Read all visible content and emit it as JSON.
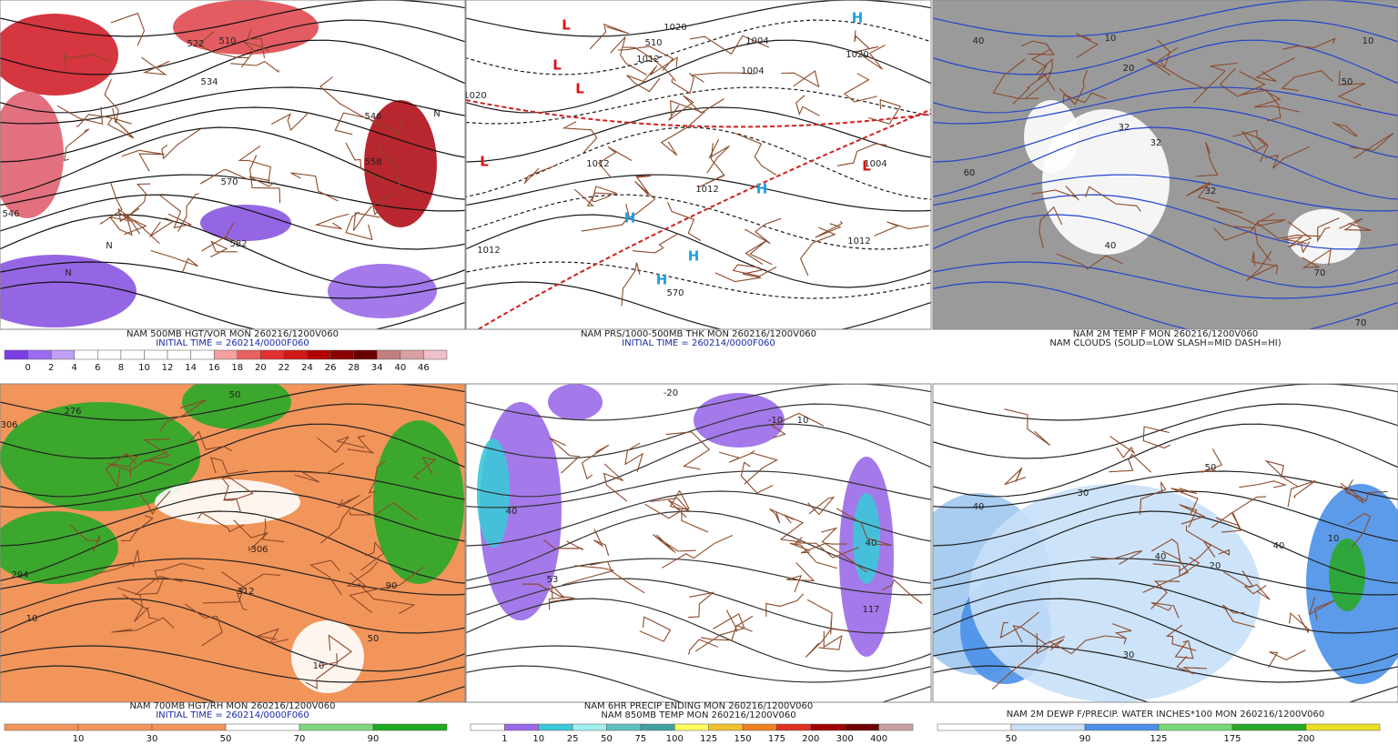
{
  "panels": [
    {
      "captions": [
        "NAM 500MB HGT/VOR MON 260216/1200V060",
        "INITIAL TIME = 260214/0000F060"
      ],
      "legend": [
        0,
        2,
        4,
        6,
        8,
        10,
        12,
        14,
        16,
        18,
        20,
        22,
        24,
        26,
        28,
        34,
        40,
        46
      ],
      "map_labels": [
        "522",
        "510",
        "534",
        "546",
        "558",
        "570",
        "582",
        "546",
        "N",
        "N",
        "N"
      ]
    },
    {
      "captions": [
        "NAM PRS/1000-500MB THK MON 260216/1200V060",
        "INITIAL TIME = 260214/0000F060"
      ],
      "map_labels": [
        "1020",
        "1004",
        "1012",
        "1012",
        "1004",
        "1012",
        "1020",
        "1012",
        "1020",
        "1004",
        "1012",
        "510",
        "570",
        "L",
        "L",
        "L",
        "L",
        "L",
        "H",
        "H",
        "H",
        "H",
        "H"
      ]
    },
    {
      "captions": [
        "NAM 2M TEMP F MON 260216/1200V060",
        "NAM CLOUDS (SOLID=LOW SLASH=MID DASH=HI)"
      ],
      "map_labels": [
        "40",
        "10",
        "20",
        "32",
        "32",
        "32",
        "50",
        "70",
        "60",
        "40",
        "10",
        "70"
      ]
    },
    {
      "captions": [
        "NAM 700MB HGT/RH MON 260216/1200V060",
        "INITIAL TIME = 260214/0000F060"
      ],
      "legend": [
        10,
        30,
        50,
        70,
        90
      ],
      "map_labels": [
        "306",
        "276",
        "294",
        "306",
        "312",
        "50",
        "10",
        "90",
        "50",
        "10"
      ]
    },
    {
      "captions": [
        "NAM 6HR PRECIP ENDING MON 260216/1200V060",
        "NAM 850MB TEMP MON 260216/1200V060"
      ],
      "legend": [
        1,
        10,
        25,
        50,
        75,
        100,
        125,
        150,
        175,
        200,
        300,
        400
      ],
      "map_labels": [
        "40",
        "10",
        "53",
        "40",
        "117",
        "-20",
        "-10"
      ]
    },
    {
      "captions": [
        "NAM 2M DEWP F/PRECIP. WATER INCHES*100 MON 260216/1200V060"
      ],
      "legend": [
        50,
        90,
        125,
        175,
        200
      ],
      "map_labels": [
        "40",
        "30",
        "50",
        "40",
        "30",
        "20",
        "40",
        "10"
      ]
    }
  ]
}
